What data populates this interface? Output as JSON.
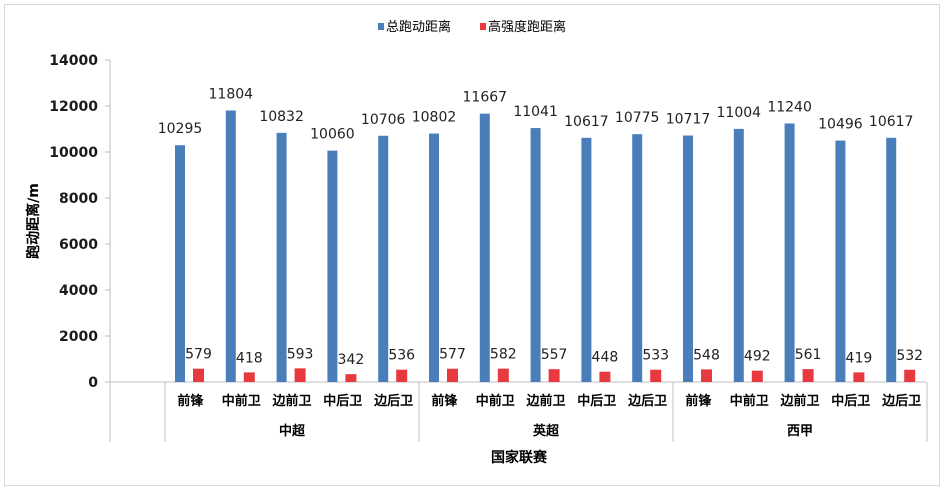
{
  "chart_data": {
    "type": "bar",
    "title": "",
    "xlabel": "国家联赛",
    "ylabel": "跑动距离/m",
    "ylim": [
      0,
      14000
    ],
    "yticks": [
      "0",
      "2000",
      "4000",
      "6000",
      "8000",
      "10000",
      "12000",
      "14000"
    ],
    "grid": false,
    "legend_position": "top-center",
    "groups": [
      "中超",
      "英超",
      "西甲"
    ],
    "categories": [
      "前锋",
      "中前卫",
      "边前卫",
      "中后卫",
      "边后卫",
      "前锋",
      "中前卫",
      "边前卫",
      "中后卫",
      "边后卫",
      "前锋",
      "中前卫",
      "边前卫",
      "中后卫",
      "边后卫"
    ],
    "series": [
      {
        "name": "总跑动距离",
        "color": "#4a7ebb",
        "values": [
          10295,
          11804,
          10832,
          10060,
          10706,
          10802,
          11667,
          11041,
          10617,
          10775,
          10717,
          11004,
          11240,
          10496,
          10617
        ]
      },
      {
        "name": "高强度跑距离",
        "color": "#e8393f",
        "values": [
          579,
          418,
          593,
          342,
          536,
          577,
          582,
          557,
          448,
          533,
          548,
          492,
          561,
          419,
          532
        ]
      }
    ]
  }
}
